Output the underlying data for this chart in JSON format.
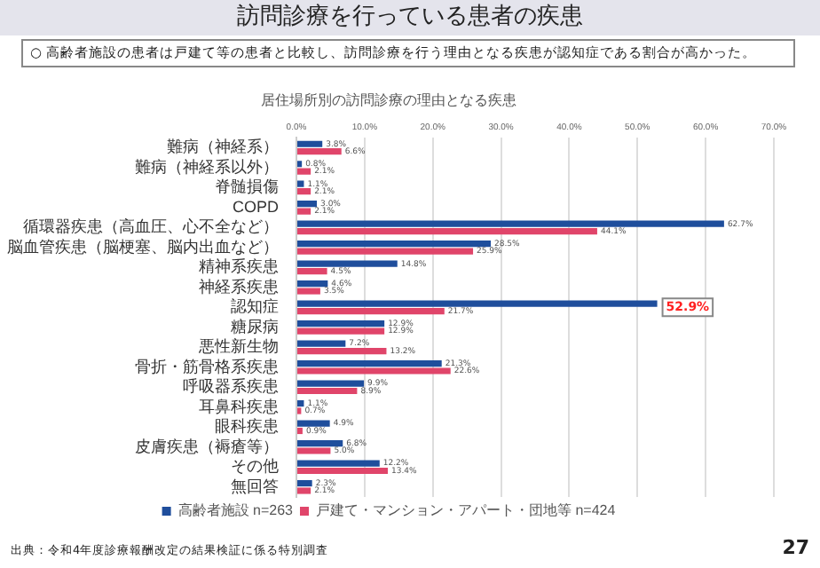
{
  "chart_data": {
    "type": "bar",
    "orientation": "horizontal",
    "title": "居住場所別の訪問診療の理由となる疾患",
    "annotations": [
      "訪問診療を行っている患者の疾患",
      "○ 高齢者施設の患者は戸建て等の患者と比較し、訪問診療を行う理由となる疾患が認知症である割合が高かった。",
      {
        "text": "52.9%",
        "x": 52.9,
        "y": "認知症"
      },
      "出典：令和4年度診療報酬改定の結果検証に係る特別調査",
      "27"
    ],
    "categories": [
      "難病（神経系）",
      "難病（神経系以外）",
      "脊髄損傷",
      "COPD",
      "循環器疾患（高血圧、心不全など）",
      "脳血管疾患（脳梗塞、脳内出血など）",
      "精神系疾患",
      "神経系疾患",
      "認知症",
      "糖尿病",
      "悪性新生物",
      "骨折・筋骨格系疾患",
      "呼吸器系疾患",
      "耳鼻科疾患",
      "眼科疾患",
      "皮膚疾患（褥瘡等）",
      "その他",
      "無回答"
    ],
    "series": [
      {
        "name": "高齢者施設 n=263",
        "color": "#1f4e9c",
        "values": [
          3.8,
          0.8,
          1.1,
          3.0,
          62.7,
          28.5,
          14.8,
          4.6,
          52.9,
          12.9,
          7.2,
          21.3,
          9.9,
          1.1,
          4.9,
          6.8,
          12.2,
          2.3
        ],
        "value_labels": [
          "3.8%",
          "0.8%",
          "1.1%",
          "3.0%",
          "62.7%",
          "28.5%",
          "14.8%",
          "4.6%",
          null,
          "12.9%",
          "7.2%",
          "21.3%",
          "9.9%",
          "1.1%",
          "4.9%",
          "6.8%",
          "12.2%",
          "2.3%"
        ]
      },
      {
        "name": "戸建て・マンション・アパート・団地等 n=424",
        "color": "#e0456a",
        "values": [
          6.6,
          2.1,
          2.1,
          2.1,
          44.1,
          25.9,
          4.5,
          3.5,
          21.7,
          12.9,
          13.2,
          22.6,
          8.9,
          0.7,
          0.9,
          5.0,
          13.4,
          2.1
        ],
        "value_labels": [
          "6.6%",
          "2.1%",
          "2.1%",
          "2.1%",
          "44.1%",
          "25.9%",
          "4.5%",
          "3.5%",
          "21.7%",
          "12.9%",
          "13.2%",
          "22.6%",
          "8.9%",
          "0.7%",
          "0.9%",
          "5.0%",
          "13.4%",
          "2.1%"
        ]
      }
    ],
    "xlim": [
      0,
      70
    ],
    "xticks": [
      {
        "value": 0,
        "label": "0.0%"
      },
      {
        "value": 10,
        "label": "10.0%"
      },
      {
        "value": 20,
        "label": "20.0%"
      },
      {
        "value": 30,
        "label": "30.0%"
      },
      {
        "value": 40,
        "label": "40.0%"
      },
      {
        "value": 50,
        "label": "50.0%"
      },
      {
        "value": 60,
        "label": "60.0%"
      },
      {
        "value": 70,
        "label": "70.0%"
      }
    ],
    "grid": "x",
    "legend": "bottom"
  }
}
